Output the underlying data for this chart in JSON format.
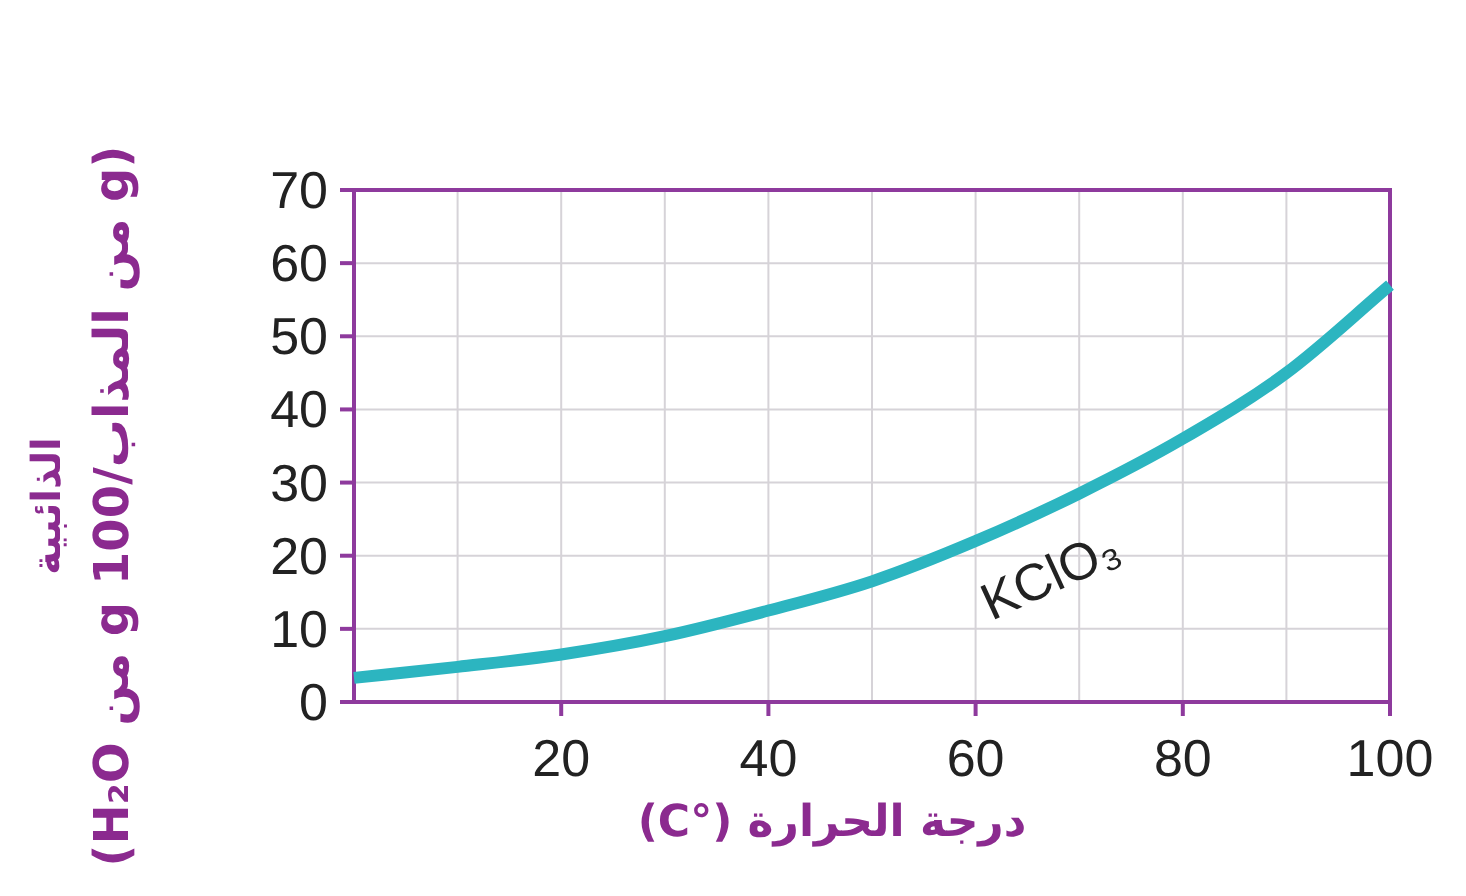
{
  "chart_data": {
    "type": "line",
    "xlabel": "درجة الحرارة (°C)",
    "ylabel": "الذائبية\n(g من المذاب/g 100 من H₂O)",
    "x": [
      0,
      10,
      20,
      30,
      40,
      50,
      60,
      70,
      80,
      90,
      100
    ],
    "series": [
      {
        "name": "KClO₃",
        "color": "#2cb5c0",
        "values": [
          3.3,
          4.8,
          6.5,
          9,
          12.5,
          16.5,
          22,
          28.5,
          36,
          45,
          57
        ]
      }
    ],
    "xlim": [
      0,
      100
    ],
    "ylim": [
      0,
      70
    ],
    "xticks": [
      {
        "value": 10,
        "label": null
      },
      20,
      {
        "value": 30,
        "label": null
      },
      40,
      {
        "value": 50,
        "label": null
      },
      60,
      {
        "value": 70,
        "label": null
      },
      80,
      {
        "value": 90,
        "label": null
      },
      100
    ],
    "yticks": [
      0,
      10,
      20,
      30,
      40,
      50,
      60,
      70
    ],
    "grid": true,
    "marker": "none",
    "line_style": "solid",
    "legend": false
  }
}
